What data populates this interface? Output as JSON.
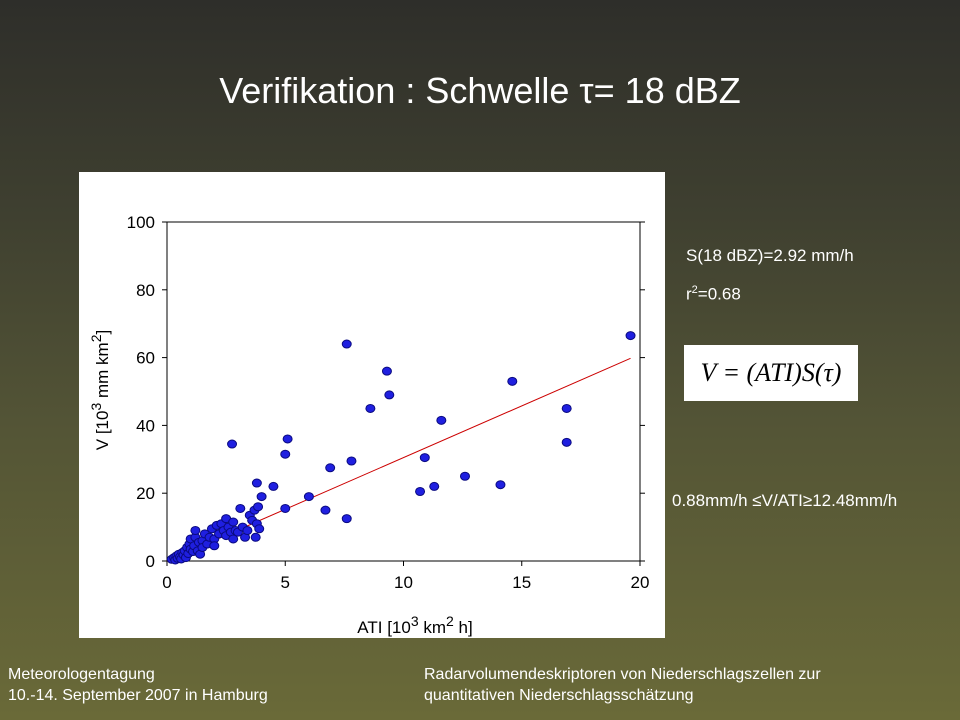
{
  "slide": {
    "title": "Verifikation  : Schwelle τ= 18 dBZ",
    "annotation_s": "S(18 dBZ)=2.92 mm/h",
    "annotation_r2_prefix": "r",
    "annotation_r2_sup": "2",
    "annotation_r2_value": "=0.68",
    "formula": "V = (ATI)S(τ)",
    "range_text": "0.88mm/h ≤V/ATI≥12.48mm/h",
    "footer_left_line1": "Meteorologentagung",
    "footer_left_line2": "10.-14. September 2007 in Hamburg",
    "footer_right_line1": "Radarvolumendeskriptoren von Niederschlagszellen zur",
    "footer_right_line2": "quantitativen Niederschlagsschätzung"
  },
  "colors": {
    "point_fill": "#1f1fe0",
    "point_stroke": "#0a0a80",
    "fit_line": "#cc0000",
    "axis": "#000000"
  },
  "chart_data": {
    "type": "scatter",
    "title": "",
    "xlabel_pre": "ATI [10",
    "xlabel_sup1": "3",
    "xlabel_mid": " km",
    "xlabel_sup2": "2",
    "xlabel_post": " h]",
    "ylabel_pre": "V [10",
    "ylabel_sup1": "3",
    "ylabel_mid": " mm km",
    "ylabel_sup2": "2",
    "ylabel_post": "]",
    "xlim": [
      0,
      20
    ],
    "ylim": [
      0,
      100
    ],
    "xticks": [
      0,
      5,
      10,
      15,
      20
    ],
    "yticks": [
      0,
      20,
      40,
      60,
      80,
      100
    ],
    "grid": false,
    "points": [
      [
        0.2,
        0.5
      ],
      [
        0.3,
        1.0
      ],
      [
        0.35,
        0.3
      ],
      [
        0.4,
        1.5
      ],
      [
        0.45,
        0.8
      ],
      [
        0.5,
        2.0
      ],
      [
        0.55,
        1.2
      ],
      [
        0.6,
        0.6
      ],
      [
        0.65,
        2.5
      ],
      [
        0.7,
        1.8
      ],
      [
        0.75,
        3.0
      ],
      [
        0.8,
        1.0
      ],
      [
        0.85,
        4.0
      ],
      [
        0.9,
        2.2
      ],
      [
        0.95,
        5.0
      ],
      [
        1.0,
        3.5
      ],
      [
        1.0,
        6.5
      ],
      [
        1.1,
        2.8
      ],
      [
        1.15,
        4.5
      ],
      [
        1.2,
        7.0
      ],
      [
        1.2,
        9.0
      ],
      [
        1.3,
        3.0
      ],
      [
        1.35,
        5.5
      ],
      [
        1.4,
        2.0
      ],
      [
        1.5,
        6.0
      ],
      [
        1.5,
        4.0
      ],
      [
        1.6,
        8.0
      ],
      [
        1.7,
        5.0
      ],
      [
        1.8,
        7.0
      ],
      [
        1.9,
        9.5
      ],
      [
        2.0,
        6.5
      ],
      [
        2.0,
        4.5
      ],
      [
        2.1,
        10.5
      ],
      [
        2.2,
        8.0
      ],
      [
        2.3,
        11.0
      ],
      [
        2.4,
        9.0
      ],
      [
        2.5,
        7.5
      ],
      [
        2.5,
        12.5
      ],
      [
        2.6,
        10.0
      ],
      [
        2.7,
        8.5
      ],
      [
        2.75,
        34.5
      ],
      [
        2.8,
        6.5
      ],
      [
        2.8,
        11.5
      ],
      [
        2.9,
        9.0
      ],
      [
        3.0,
        8.5
      ],
      [
        3.1,
        15.5
      ],
      [
        3.2,
        10.0
      ],
      [
        3.3,
        7.0
      ],
      [
        3.4,
        9.0
      ],
      [
        3.5,
        13.5
      ],
      [
        3.6,
        12.0
      ],
      [
        3.7,
        15.0
      ],
      [
        3.75,
        7.0
      ],
      [
        3.8,
        11.0
      ],
      [
        3.8,
        23.0
      ],
      [
        3.85,
        16.0
      ],
      [
        3.9,
        9.5
      ],
      [
        4.0,
        19.0
      ],
      [
        4.5,
        22.0
      ],
      [
        5.0,
        15.5
      ],
      [
        5.0,
        31.5
      ],
      [
        5.1,
        36.0
      ],
      [
        6.0,
        19.0
      ],
      [
        6.7,
        15.0
      ],
      [
        6.9,
        27.5
      ],
      [
        7.6,
        64.0
      ],
      [
        7.6,
        12.5
      ],
      [
        7.8,
        29.5
      ],
      [
        8.6,
        45.0
      ],
      [
        9.3,
        56.0
      ],
      [
        9.4,
        49.0
      ],
      [
        10.7,
        20.5
      ],
      [
        10.9,
        30.5
      ],
      [
        11.3,
        22.0
      ],
      [
        11.6,
        41.5
      ],
      [
        12.6,
        25.0
      ],
      [
        14.1,
        22.5
      ],
      [
        14.6,
        53.0
      ],
      [
        16.9,
        45.0
      ],
      [
        16.9,
        35.0
      ],
      [
        19.6,
        66.5
      ]
    ],
    "fit_line": {
      "slope": 3.05,
      "intercept": 0,
      "x_range": [
        0,
        19.6
      ]
    }
  }
}
